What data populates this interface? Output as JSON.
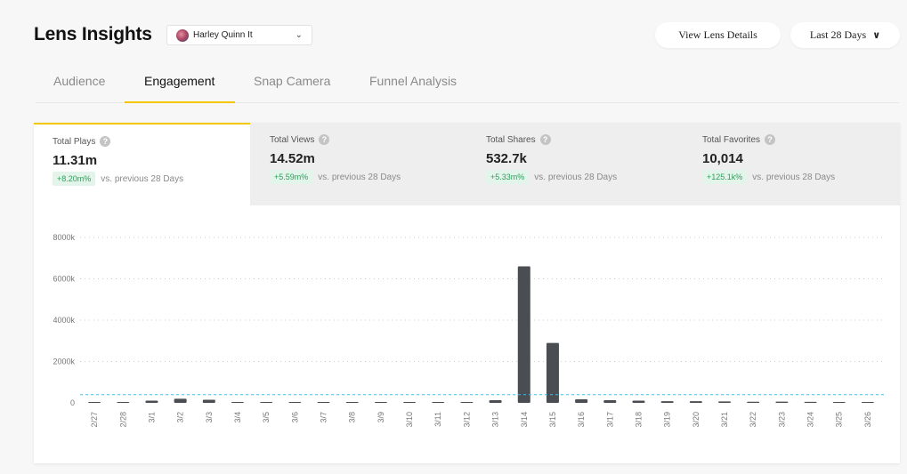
{
  "header": {
    "title": "Lens Insights",
    "lens_select": {
      "value": "Harley Quinn It"
    },
    "view_details_label": "View Lens Details",
    "date_range_label": "Last 28 Days"
  },
  "tabs": [
    {
      "label": "Audience"
    },
    {
      "label": "Engagement"
    },
    {
      "label": "Snap Camera"
    },
    {
      "label": "Funnel Analysis"
    }
  ],
  "active_tab": "Engagement",
  "metrics": [
    {
      "label": "Total Plays",
      "value": "11.31m",
      "change": "+8.20m%",
      "comparison": "vs. previous 28 Days"
    },
    {
      "label": "Total Views",
      "value": "14.52m",
      "change": "+5.59m%",
      "comparison": "vs. previous 28 Days"
    },
    {
      "label": "Total Shares",
      "value": "532.7k",
      "change": "+5.33m%",
      "comparison": "vs. previous 28 Days"
    },
    {
      "label": "Total Favorites",
      "value": "10,014",
      "change": "+125.1k%",
      "comparison": "vs. previous 28 Days"
    }
  ],
  "active_metric": "Total Plays",
  "colors": {
    "accent": "#f3c600",
    "bar": "#4a4d52",
    "average_line": "#4fb8e0",
    "positive": "#2f9d5b"
  },
  "chart_data": {
    "type": "bar",
    "categories": [
      "2/27",
      "2/28",
      "3/1",
      "3/2",
      "3/3",
      "3/4",
      "3/5",
      "3/6",
      "3/7",
      "3/8",
      "3/9",
      "3/10",
      "3/11",
      "3/12",
      "3/13",
      "3/14",
      "3/15",
      "3/16",
      "3/17",
      "3/18",
      "3/19",
      "3/20",
      "3/21",
      "3/22",
      "3/23",
      "3/24",
      "3/25",
      "3/26"
    ],
    "values": [
      5,
      30,
      110,
      200,
      150,
      40,
      25,
      40,
      45,
      20,
      20,
      10,
      10,
      5,
      130,
      6600,
      2900,
      170,
      130,
      110,
      80,
      80,
      70,
      55,
      60,
      50,
      40,
      45
    ],
    "yticks": [
      0,
      2000,
      4000,
      6000,
      8000
    ],
    "ytick_labels": [
      "0",
      "2000k",
      "4000k",
      "6000k",
      "8000k"
    ],
    "ylim": [
      0,
      8000
    ],
    "average_line": 400,
    "grid": true,
    "title": "",
    "xlabel": "",
    "ylabel": ""
  }
}
